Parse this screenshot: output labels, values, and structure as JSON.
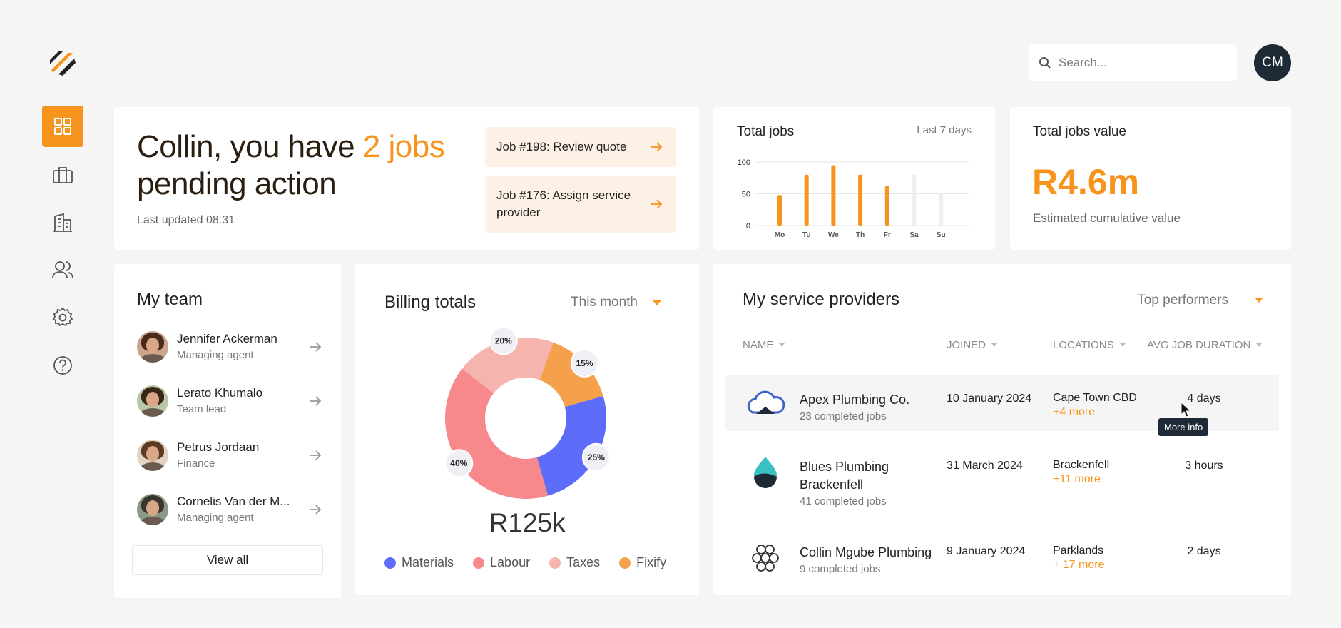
{
  "header": {
    "search_placeholder": "Search...",
    "avatar": "CM"
  },
  "hero": {
    "headline_pre": "Collin, you have ",
    "headline_highlight": "2 jobs",
    "headline_post": "pending action",
    "last_updated": "Last updated 08:31",
    "actions": [
      "Job #198: Review quote",
      "Job #176: Assign service provider"
    ]
  },
  "chart_data": [
    {
      "type": "bar",
      "title": "Total jobs",
      "subtitle": "Last 7 days",
      "categories": [
        "Mo",
        "Tu",
        "We",
        "Th",
        "Fr",
        "Sa",
        "Su"
      ],
      "values": [
        48,
        80,
        95,
        80,
        62,
        80,
        50
      ],
      "colors": [
        "#f7941d",
        "#f7941d",
        "#f7941d",
        "#f7941d",
        "#f7941d",
        "#efefef",
        "#efefef"
      ],
      "ylim": [
        0,
        100
      ],
      "yticks": [
        0,
        50,
        100
      ],
      "grid": true
    },
    {
      "type": "donut",
      "title": "Billing totals",
      "filter": "This month",
      "center_label": "R125k",
      "categories": [
        "Materials",
        "Labour",
        "Taxes",
        "Fixify"
      ],
      "values": [
        25,
        40,
        20,
        15
      ],
      "value_labels": [
        "25%",
        "40%",
        "20%",
        "15%"
      ],
      "colors": [
        "#5d6dfa",
        "#f7888b",
        "#f5b4ae",
        "#f5a04b"
      ]
    }
  ],
  "total_value": {
    "title": "Total jobs value",
    "value": "R4.6m",
    "caption": "Estimated cumulative value"
  },
  "team": {
    "title": "My team",
    "members": [
      {
        "name": "Jennifer Ackerman",
        "role": "Managing agent"
      },
      {
        "name": "Lerato Khumalo",
        "role": "Team lead"
      },
      {
        "name": "Petrus Jordaan",
        "role": "Finance"
      },
      {
        "name": "Cornelis Van der M...",
        "role": "Managing agent"
      }
    ],
    "view_all": "View all"
  },
  "providers": {
    "title": "My service providers",
    "filter": "Top performers",
    "columns": [
      "NAME",
      "JOINED",
      "LOCATIONS",
      "AVG JOB DURATION"
    ],
    "rows": [
      {
        "name": "Apex Plumbing Co.",
        "jobs": "23 completed jobs",
        "joined": "10 January 2024",
        "location": "Cape Town CBD",
        "more": "+4 more",
        "duration": "4 days"
      },
      {
        "name": "Blues Plumbing Brackenfell",
        "jobs": "41 completed jobs",
        "joined": "31 March 2024",
        "location": "Brackenfell",
        "more": "+11 more",
        "duration": "3 hours"
      },
      {
        "name": "Collin Mgube Plumbing",
        "jobs": "9 completed jobs",
        "joined": "9 January 2024",
        "location": "Parklands",
        "more": "+ 17 more",
        "duration": "2 days"
      }
    ],
    "tooltip": "More info"
  }
}
